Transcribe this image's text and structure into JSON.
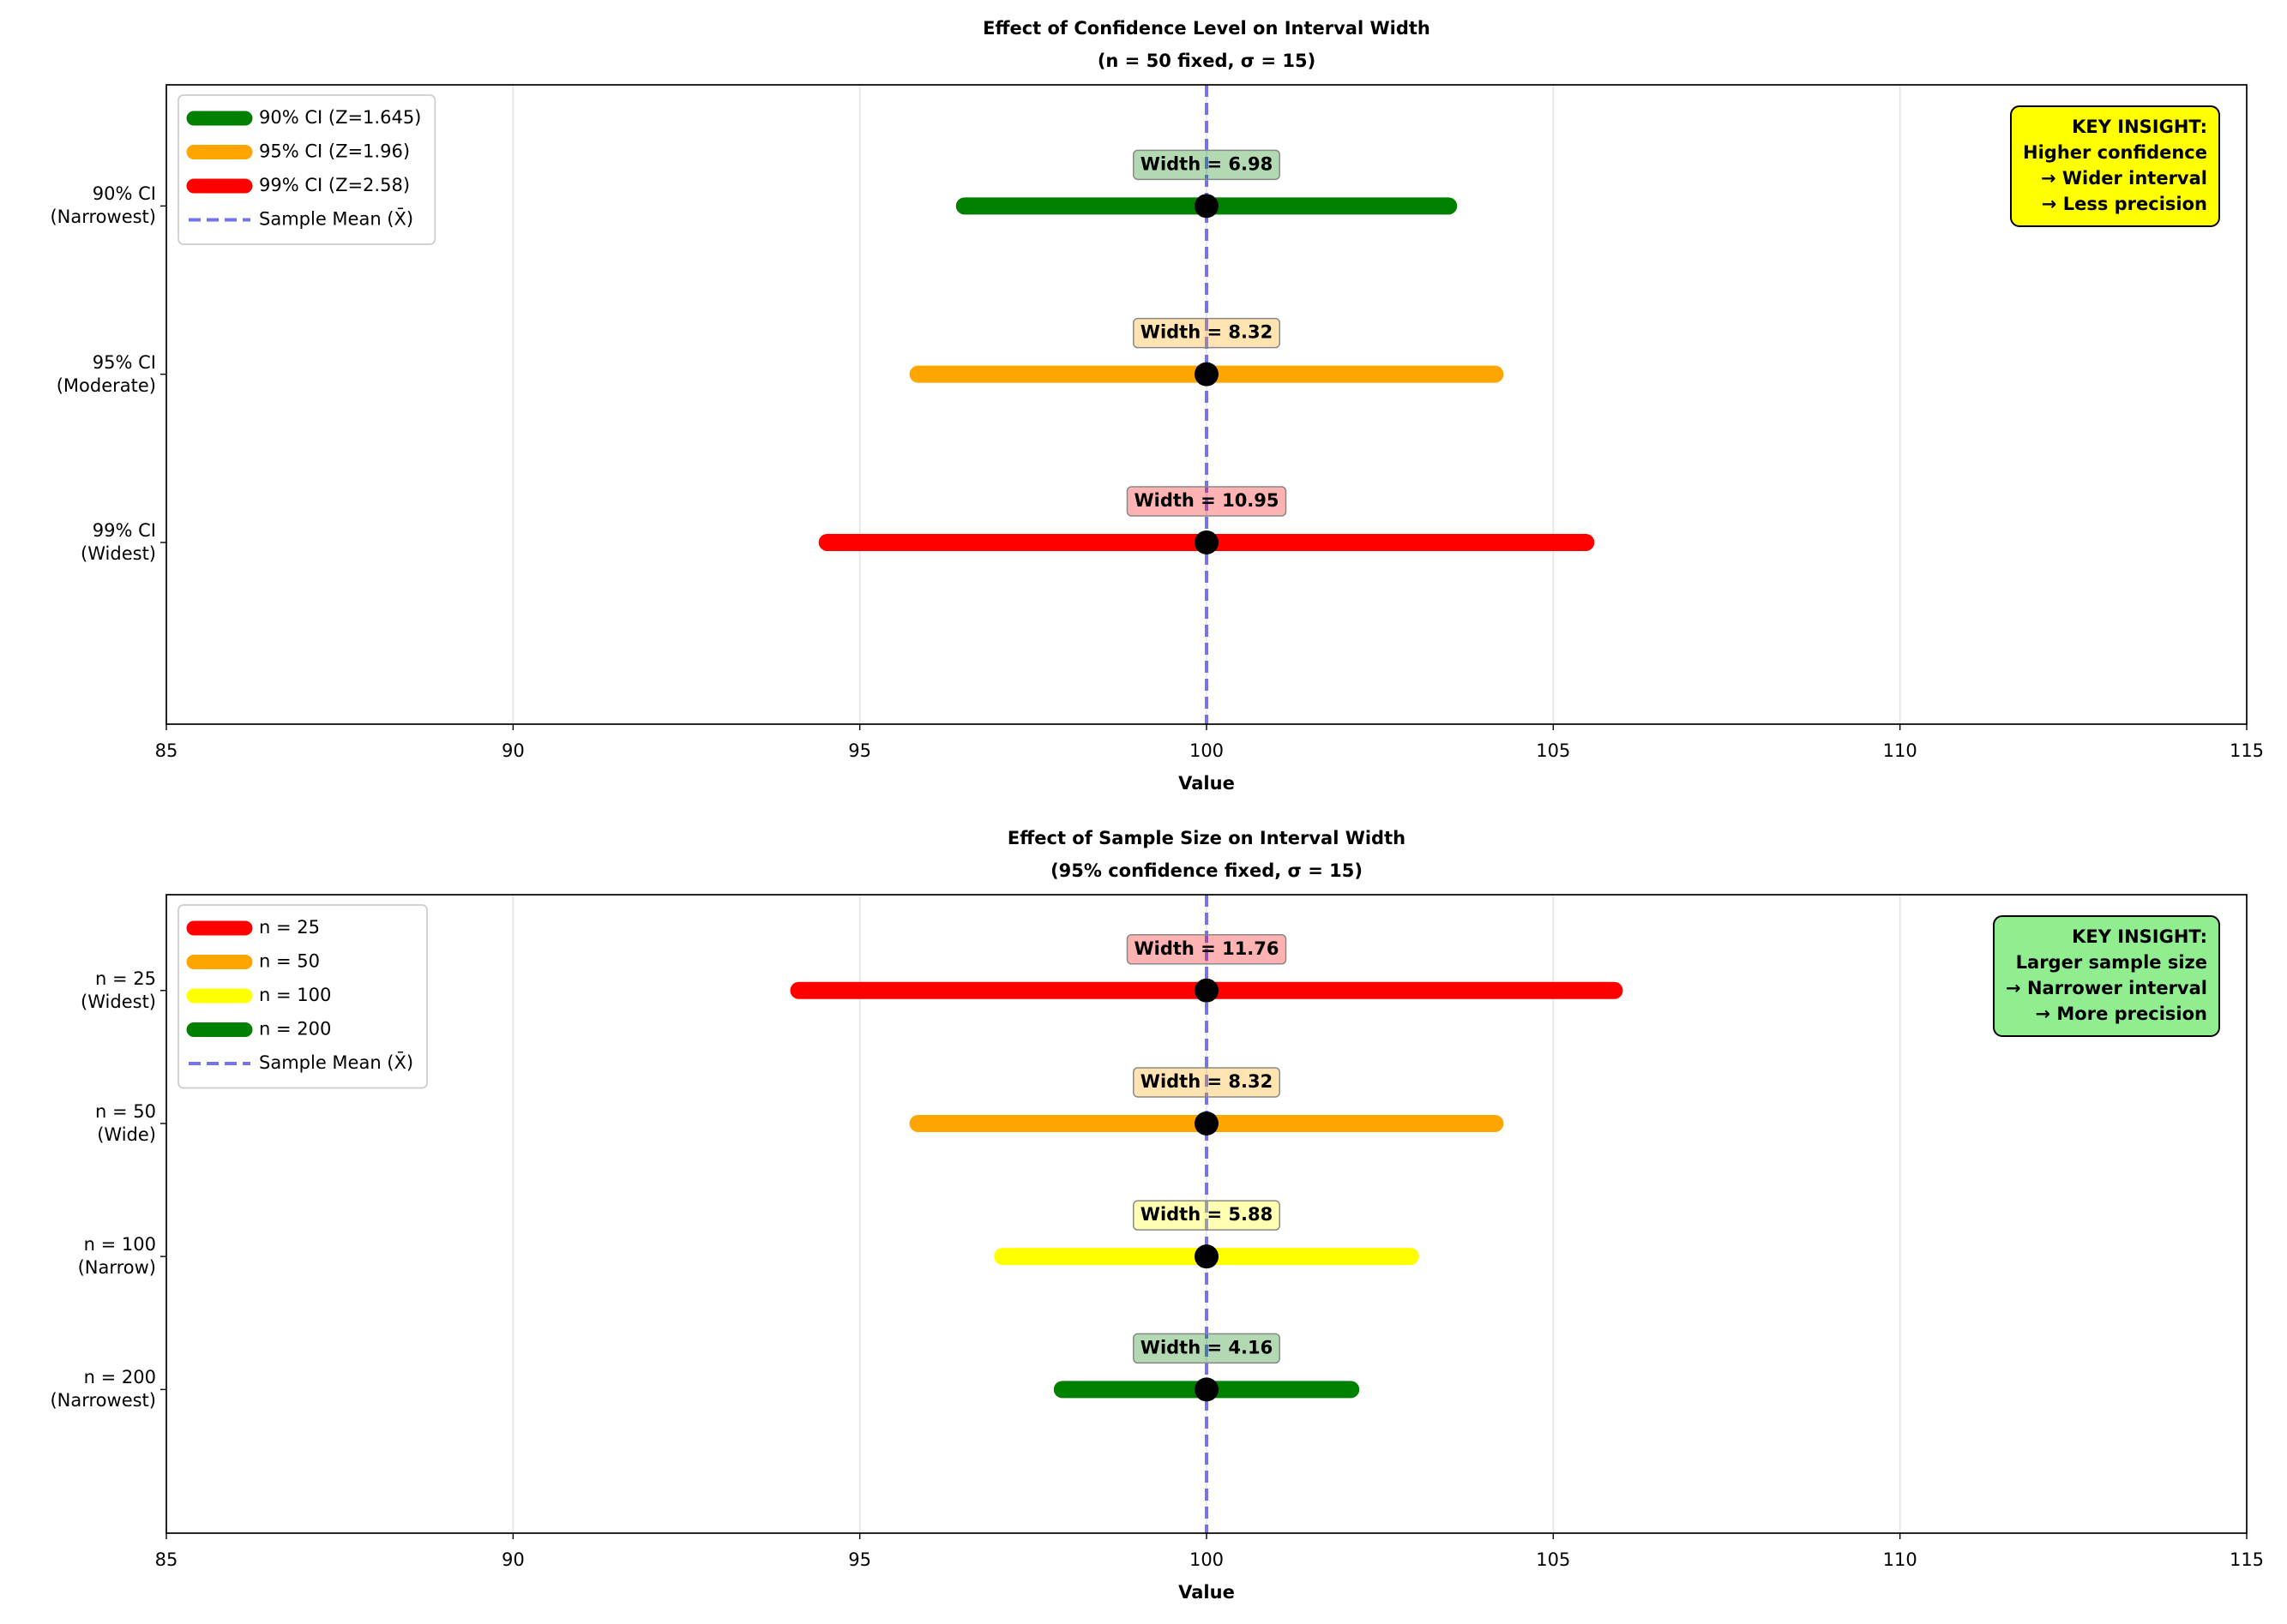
{
  "chart_data": [
    {
      "type": "interval",
      "title": "Effect of Confidence Level on Interval Width",
      "subtitle": "(n = 50 fixed, σ = 15)",
      "x_label": "Value",
      "xlim": [
        85,
        115
      ],
      "xticks": [
        85,
        90,
        95,
        100,
        105,
        110,
        115
      ],
      "grid": true,
      "legend": "upper left",
      "categories": [
        "90% CI\n(Narrowest)",
        "95% CI\n(Moderate)",
        "99% CI\n(Widest)"
      ],
      "series": [
        {
          "name": "90% CI (Z=1.645)",
          "color": "#008000",
          "lower": 96.51,
          "upper": 103.49,
          "mean": 100,
          "width": 6.98,
          "width_label": "Width = 6.98"
        },
        {
          "name": "95% CI (Z=1.96)",
          "color": "#ffa500",
          "lower": 95.84,
          "upper": 104.16,
          "mean": 100,
          "width": 8.32,
          "width_label": "Width = 8.32"
        },
        {
          "name": "99% CI (Z=2.58)",
          "color": "#ff0000",
          "lower": 94.53,
          "upper": 105.47,
          "mean": 100,
          "width": 10.95,
          "width_label": "Width = 10.95"
        }
      ],
      "reference_line": {
        "name": "Sample Mean (X̄)",
        "value": 100,
        "color": "#7373f2"
      },
      "insight": {
        "color": "#ffff00",
        "lines": [
          "KEY INSIGHT:",
          "Higher confidence",
          "→ Wider interval",
          "→ Less precision"
        ]
      }
    },
    {
      "type": "interval",
      "title": "Effect of Sample Size on Interval Width",
      "subtitle": "(95% confidence fixed, σ = 15)",
      "x_label": "Value",
      "xlim": [
        85,
        115
      ],
      "xticks": [
        85,
        90,
        95,
        100,
        105,
        110,
        115
      ],
      "grid": true,
      "legend": "upper left",
      "categories": [
        "n = 25\n(Widest)",
        "n = 50\n(Wide)",
        "n = 100\n(Narrow)",
        "n = 200\n(Narrowest)"
      ],
      "series": [
        {
          "name": "n = 25",
          "color": "#ff0000",
          "lower": 94.12,
          "upper": 105.88,
          "mean": 100,
          "width": 11.76,
          "width_label": "Width = 11.76"
        },
        {
          "name": "n = 50",
          "color": "#ffa500",
          "lower": 95.84,
          "upper": 104.16,
          "mean": 100,
          "width": 8.32,
          "width_label": "Width = 8.32"
        },
        {
          "name": "n = 100",
          "color": "#ffff00",
          "lower": 97.06,
          "upper": 102.94,
          "mean": 100,
          "width": 5.88,
          "width_label": "Width = 5.88"
        },
        {
          "name": "n = 200",
          "color": "#008000",
          "lower": 97.92,
          "upper": 102.08,
          "mean": 100,
          "width": 4.16,
          "width_label": "Width = 4.16"
        }
      ],
      "reference_line": {
        "name": "Sample Mean (X̄)",
        "value": 100,
        "color": "#7373f2"
      },
      "insight": {
        "color": "#90ee90",
        "lines": [
          "KEY INSIGHT:",
          "Larger sample size",
          "→ Narrower interval",
          "→ More precision"
        ]
      }
    }
  ]
}
